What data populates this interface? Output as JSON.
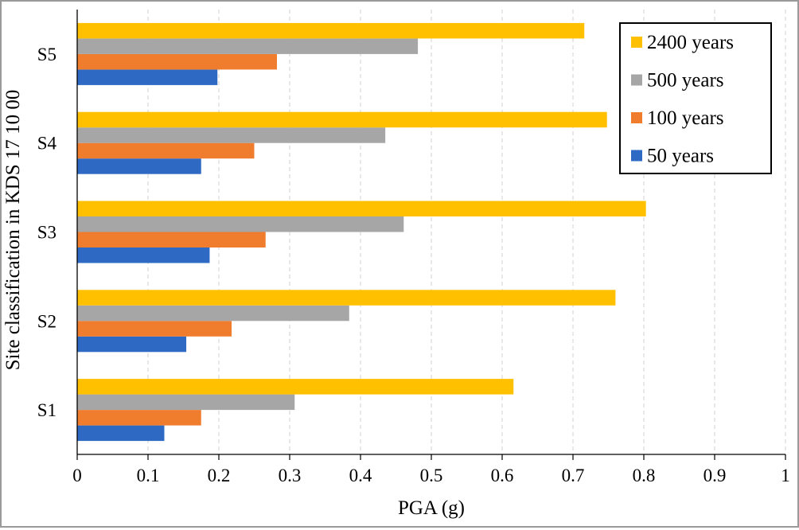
{
  "chart_data": {
    "type": "bar",
    "orientation": "horizontal",
    "xlabel": "PGA (g)",
    "ylabel": "Site classification in KDS 17 10 00",
    "xlim": [
      0,
      1
    ],
    "xticks": [
      "0",
      "0.1",
      "0.2",
      "0.3",
      "0.4",
      "0.5",
      "0.6",
      "0.7",
      "0.8",
      "0.9",
      "1"
    ],
    "categories": [
      "S1",
      "S2",
      "S3",
      "S4",
      "S5"
    ],
    "series": [
      {
        "name": "50 years",
        "color": "#2e69c3",
        "values": [
          0.123,
          0.154,
          0.187,
          0.175,
          0.198
        ]
      },
      {
        "name": "100 years",
        "color": "#f07c2d",
        "values": [
          0.175,
          0.218,
          0.266,
          0.25,
          0.282
        ]
      },
      {
        "name": "500 years",
        "color": "#a6a6a6",
        "values": [
          0.307,
          0.384,
          0.461,
          0.435,
          0.481
        ]
      },
      {
        "name": "2400 years",
        "color": "#ffc000",
        "values": [
          0.616,
          0.76,
          0.803,
          0.748,
          0.716
        ]
      }
    ],
    "legend_order": [
      "2400 years",
      "500 years",
      "100 years",
      "50 years"
    ],
    "legend_position": "top-right",
    "grid": "vertical dashed"
  }
}
